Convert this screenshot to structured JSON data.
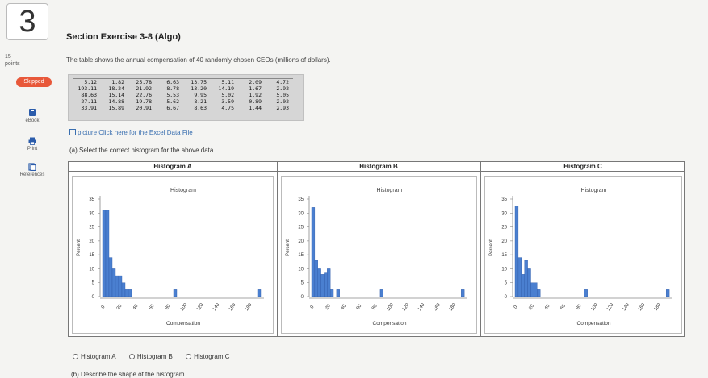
{
  "question": {
    "number": "3",
    "points_value": "15",
    "points_label": "points",
    "status_badge": "Skipped"
  },
  "tools": [
    {
      "label": "eBook",
      "icon": "ebook-icon"
    },
    {
      "label": "Print",
      "icon": "print-icon"
    },
    {
      "label": "References",
      "icon": "references-icon"
    }
  ],
  "title": "Section Exercise 3-8 (Algo)",
  "prompt": "The table shows the annual compensation of 40 randomly chosen CEOs (millions of dollars).",
  "data_rows": [
    [
      "5.12",
      "1.82",
      "25.78",
      "6.63",
      "13.75",
      "5.11",
      "2.09",
      "4.72"
    ],
    [
      "193.11",
      "18.24",
      "21.92",
      "8.78",
      "13.20",
      "14.19",
      "1.67",
      "2.92"
    ],
    [
      "88.63",
      "15.14",
      "22.76",
      "5.53",
      "9.95",
      "5.02",
      "1.92",
      "5.05"
    ],
    [
      "27.11",
      "14.88",
      "19.78",
      "5.62",
      "8.21",
      "3.59",
      "0.89",
      "2.02"
    ],
    [
      "33.91",
      "15.89",
      "20.91",
      "6.67",
      "8.63",
      "4.75",
      "1.44",
      "2.93"
    ]
  ],
  "excel_link": "picture  Click here for the Excel Data File",
  "part_a": "(a) Select the correct histogram for the above data.",
  "histograms": [
    {
      "header": "Histogram A",
      "chart_data": {
        "type": "bar",
        "title": "Histogram",
        "xlabel": "Compensation",
        "ylabel": "Percent",
        "ylim": [
          0,
          35
        ],
        "xlim": [
          0,
          200
        ],
        "yticks": [
          "0",
          "5",
          "10",
          "15",
          "20",
          "25",
          "30",
          "35"
        ],
        "xticks": [
          "0",
          "20",
          "40",
          "60",
          "80",
          "100",
          "120",
          "140",
          "160",
          "180"
        ],
        "bin_width": 4,
        "bins": [
          [
            0,
            31
          ],
          [
            4,
            31
          ],
          [
            8,
            14
          ],
          [
            12,
            10
          ],
          [
            16,
            7.5
          ],
          [
            20,
            7.5
          ],
          [
            24,
            5
          ],
          [
            28,
            2.5
          ],
          [
            32,
            2.5
          ],
          [
            88,
            2.5
          ],
          [
            192,
            2.5
          ]
        ]
      }
    },
    {
      "header": "Histogram B",
      "chart_data": {
        "type": "bar",
        "title": "Histogram",
        "xlabel": "Compensation",
        "ylabel": "Percent",
        "ylim": [
          0,
          35
        ],
        "xlim": [
          0,
          200
        ],
        "yticks": [
          "0",
          "5",
          "10",
          "15",
          "20",
          "25",
          "30",
          "35"
        ],
        "xticks": [
          "0",
          "20",
          "40",
          "60",
          "80",
          "100",
          "120",
          "140",
          "160",
          "180"
        ],
        "bin_width": 4,
        "bins": [
          [
            0,
            32
          ],
          [
            4,
            13
          ],
          [
            8,
            10
          ],
          [
            12,
            8
          ],
          [
            16,
            8.5
          ],
          [
            20,
            10
          ],
          [
            24,
            2.5
          ],
          [
            32,
            2.5
          ],
          [
            88,
            2.5
          ],
          [
            192,
            2.5
          ]
        ]
      }
    },
    {
      "header": "Histogram C",
      "chart_data": {
        "type": "bar",
        "title": "Histogram",
        "xlabel": "Compensation",
        "ylabel": "Percent",
        "ylim": [
          0,
          35
        ],
        "xlim": [
          0,
          200
        ],
        "yticks": [
          "0",
          "5",
          "10",
          "15",
          "20",
          "25",
          "30",
          "35"
        ],
        "xticks": [
          "0",
          "20",
          "40",
          "60",
          "80",
          "100",
          "120",
          "140",
          "160",
          "180"
        ],
        "bin_width": 4,
        "bins": [
          [
            0,
            32.5
          ],
          [
            4,
            14
          ],
          [
            8,
            8
          ],
          [
            12,
            13
          ],
          [
            16,
            10
          ],
          [
            20,
            5
          ],
          [
            24,
            5
          ],
          [
            28,
            2.5
          ],
          [
            88,
            2.5
          ],
          [
            192,
            2.5
          ]
        ]
      }
    }
  ],
  "options": [
    "Histogram A",
    "Histogram B",
    "Histogram C"
  ],
  "part_b": "(b) Describe the shape of the histogram.",
  "colors": {
    "bar": "#4a7fd0",
    "bar_edge": "#2e5aa8",
    "skipped": "#e8583a",
    "link": "#3a6fb0"
  }
}
